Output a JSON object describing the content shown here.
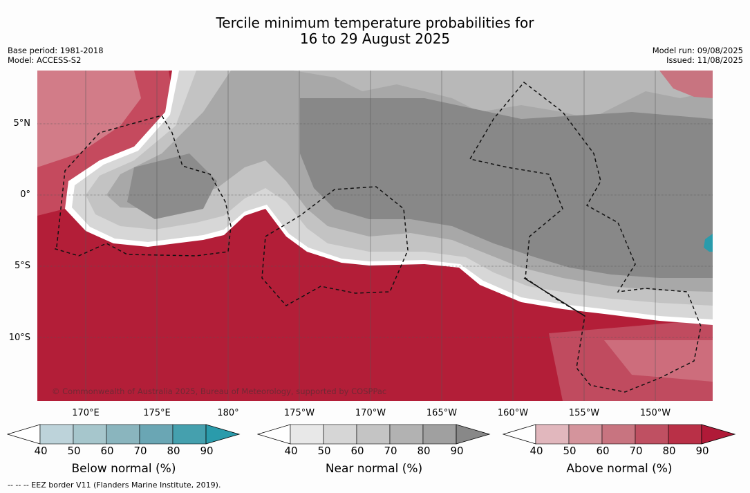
{
  "title": {
    "line1": "Tercile minimum temperature probabilities for",
    "line2": "16 to 29 August 2025"
  },
  "meta": {
    "base_period": "Base period: 1981-2018",
    "model": "Model: ACCESS-S2",
    "model_run": "Model run: 09/08/2025",
    "issued": "Issued: 11/08/2025"
  },
  "axes": {
    "lat_labels": [
      "5°N",
      "0°",
      "5°S",
      "10°S"
    ],
    "lon_labels": [
      "170°E",
      "175°E",
      "180°",
      "175°W",
      "170°W",
      "165°W",
      "160°W",
      "155°W",
      "150°W"
    ]
  },
  "copyright": "© Commonwealth of Australia 2025, Bureau of Meteorology, supported by COSPPac",
  "colorbars": [
    {
      "title": "Below normal (%)",
      "ticks": [
        "40",
        "50",
        "60",
        "70",
        "80",
        "90"
      ],
      "colors": [
        "#bdd3da",
        "#a6c6cc",
        "#8ab5be",
        "#6aa6b4",
        "#45a0ae",
        "#2a9bab"
      ]
    },
    {
      "title": "Near normal (%)",
      "ticks": [
        "40",
        "50",
        "60",
        "70",
        "80",
        "90"
      ],
      "colors": [
        "#e8e8e8",
        "#d6d6d6",
        "#c4c4c4",
        "#b2b2b2",
        "#a0a0a0",
        "#888888"
      ]
    },
    {
      "title": "Above normal (%)",
      "ticks": [
        "40",
        "50",
        "60",
        "70",
        "80",
        "90"
      ],
      "colors": [
        "#e1b7bd",
        "#d4949c",
        "#c87480",
        "#bf5062",
        "#b93047",
        "#b01a38"
      ]
    }
  ],
  "footer": "--  --  -- EEZ border V11 (Flanders Marine Institute, 2019)."
}
